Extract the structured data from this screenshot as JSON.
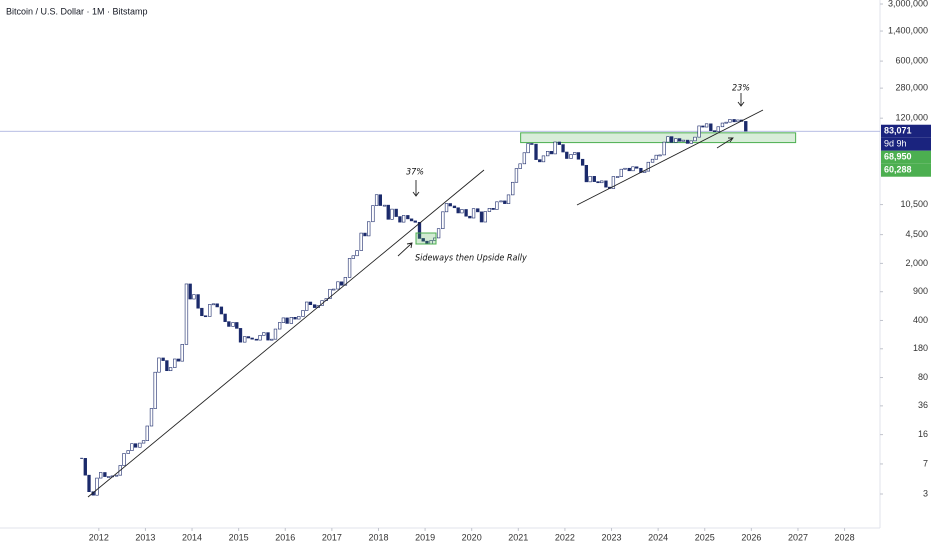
{
  "chart_data": {
    "type": "candlestick",
    "title": "Bitcoin / U.S. Dollar · 1M · Bitstamp",
    "up_color": "#ffffff",
    "down_color": "#1b2a6b",
    "log_scale": true,
    "xlim": [
      2009.88,
      2028.76
    ],
    "ylim": [
      1.15,
      3360000
    ],
    "xticks": [
      2012,
      2013,
      2014,
      2015,
      2016,
      2017,
      2018,
      2019,
      2020,
      2021,
      2022,
      2023,
      2024,
      2025,
      2026,
      2027,
      2028
    ],
    "yticks": [
      3,
      7,
      16,
      36,
      80,
      180,
      400,
      900,
      {
        "value": 2000,
        "label": "2,000"
      },
      {
        "value": 4500,
        "label": "4,500"
      },
      {
        "value": 10500,
        "label": "10,500"
      },
      {
        "value": 120000,
        "label": "120,000"
      },
      {
        "value": 280000,
        "label": "280,000"
      },
      {
        "value": 600000,
        "label": "600,000"
      },
      {
        "value": 1400000,
        "label": "1,400,000"
      },
      {
        "value": 3000000,
        "label": "3,000,000"
      }
    ],
    "x": [
      2011.63,
      2011.71,
      2011.79,
      2011.88,
      2011.96,
      2012.04,
      2012.13,
      2012.21,
      2012.29,
      2012.38,
      2012.46,
      2012.54,
      2012.63,
      2012.71,
      2012.79,
      2012.88,
      2012.96,
      2013.04,
      2013.13,
      2013.21,
      2013.29,
      2013.38,
      2013.46,
      2013.54,
      2013.63,
      2013.71,
      2013.79,
      2013.88,
      2013.96,
      2014.04,
      2014.13,
      2014.21,
      2014.29,
      2014.38,
      2014.46,
      2014.54,
      2014.63,
      2014.71,
      2014.79,
      2014.88,
      2014.96,
      2015.04,
      2015.13,
      2015.21,
      2015.29,
      2015.38,
      2015.46,
      2015.54,
      2015.63,
      2015.71,
      2015.79,
      2015.88,
      2015.96,
      2016.04,
      2016.13,
      2016.21,
      2016.29,
      2016.38,
      2016.46,
      2016.54,
      2016.63,
      2016.71,
      2016.79,
      2016.88,
      2016.96,
      2017.04,
      2017.13,
      2017.21,
      2017.29,
      2017.38,
      2017.46,
      2017.54,
      2017.63,
      2017.71,
      2017.79,
      2017.88,
      2017.96,
      2018.04,
      2018.13,
      2018.21,
      2018.29,
      2018.38,
      2018.46,
      2018.54,
      2018.63,
      2018.71,
      2018.79,
      2018.88,
      2018.96,
      2019.04,
      2019.13,
      2019.21,
      2019.29,
      2019.38,
      2019.46,
      2019.54,
      2019.63,
      2019.71,
      2019.79,
      2019.88,
      2019.96,
      2020.04,
      2020.13,
      2020.21,
      2020.29,
      2020.38,
      2020.46,
      2020.54,
      2020.63,
      2020.71,
      2020.79,
      2020.88,
      2020.96,
      2021.04,
      2021.13,
      2021.21,
      2021.29,
      2021.38,
      2021.46,
      2021.54,
      2021.63,
      2021.71,
      2021.79,
      2021.88,
      2021.96,
      2022.04,
      2022.13,
      2022.21,
      2022.29,
      2022.38,
      2022.46,
      2022.54,
      2022.63,
      2022.71,
      2022.79,
      2022.88,
      2022.96,
      2023.04,
      2023.13,
      2023.21,
      2023.29,
      2023.38,
      2023.46,
      2023.54,
      2023.63,
      2023.71,
      2023.79,
      2023.88,
      2023.96,
      2024.04,
      2024.13,
      2024.21,
      2024.29,
      2024.38,
      2024.46,
      2024.54,
      2024.63,
      2024.71,
      2024.79,
      2024.88,
      2024.96,
      2025.04,
      2025.13,
      2025.21,
      2025.29,
      2025.38,
      2025.46,
      2025.54,
      2025.63,
      2025.71,
      2025.79,
      2025.88
    ],
    "values": [
      8.2,
      5.1,
      3.2,
      2.9,
      4.7,
      5.5,
      4.9,
      4.9,
      5.0,
      5.1,
      6.7,
      9.4,
      10.2,
      12.4,
      11.2,
      12.6,
      13.5,
      20.4,
      33.4,
      93,
      139,
      129,
      97,
      106,
      135,
      127,
      204,
      1120,
      732,
      830,
      565,
      457,
      448,
      628,
      640,
      586,
      480,
      387,
      338,
      378,
      320,
      217,
      254,
      244,
      236,
      230,
      263,
      284,
      230,
      236,
      314,
      377,
      430,
      368,
      437,
      416,
      448,
      531,
      673,
      624,
      575,
      609,
      700,
      742,
      964,
      970,
      1190,
      1080,
      1348,
      2300,
      2480,
      2875,
      4700,
      4340,
      6470,
      10200,
      13860,
      10220,
      10330,
      6930,
      9240,
      7490,
      6400,
      7730,
      7020,
      6630,
      6370,
      4040,
      3740,
      3450,
      3820,
      4100,
      5320,
      8560,
      10820,
      10090,
      9600,
      8290,
      9150,
      7560,
      7190,
      9350,
      8550,
      6420,
      8630,
      9450,
      9140,
      11350,
      11650,
      10780,
      13800,
      19700,
      28990,
      33140,
      45240,
      58800,
      57700,
      37300,
      35040,
      41460,
      47100,
      43820,
      61300,
      57000,
      46210,
      38480,
      43190,
      45540,
      37710,
      31790,
      19930,
      23290,
      20050,
      19430,
      20490,
      17170,
      16540,
      23130,
      23140,
      28470,
      29250,
      27220,
      30470,
      29230,
      25930,
      26970,
      34660,
      37720,
      42280,
      42580,
      61130,
      71330,
      60640,
      67490,
      62680,
      64620,
      58970,
      63330,
      70290,
      96400,
      93430,
      102400,
      84350,
      82550,
      94200,
      104600,
      107200,
      115800,
      108300,
      114100,
      109600,
      83071
    ],
    "price_tags": [
      {
        "value": 83071,
        "label": "83,071"
      },
      {
        "value": 68950,
        "label": "68,950"
      },
      {
        "value": 60288,
        "label": "60,288"
      }
    ],
    "price_tag_colors": [
      "#1a237e",
      "#4caf50",
      "#4caf50"
    ],
    "countdown": "9d 9h",
    "annotations": [
      "37%",
      "23%",
      "Sideways then Upside Rally"
    ]
  }
}
